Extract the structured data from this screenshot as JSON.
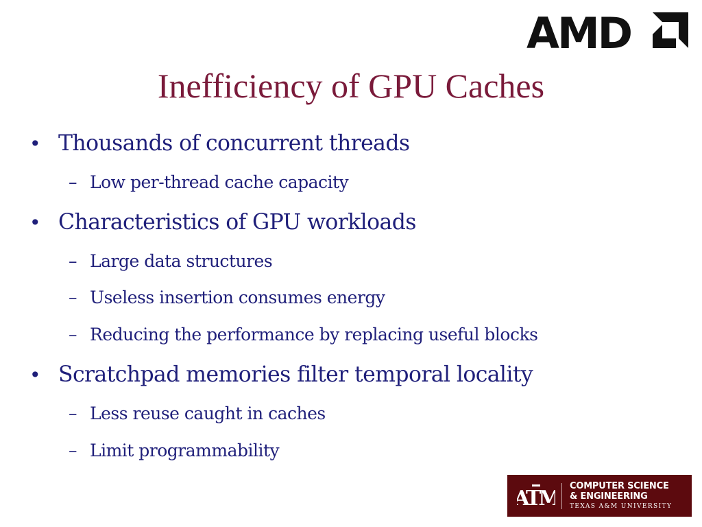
{
  "slide": {
    "title": "Inefficiency of GPU Caches",
    "bullets": [
      {
        "text": "Thousands of concurrent threads",
        "sub": [
          "Low per-thread cache capacity"
        ]
      },
      {
        "text": "Characteristics of GPU workloads",
        "sub": [
          "Large data structures",
          "Useless insertion consumes energy",
          "Reducing the performance by replacing useful blocks"
        ]
      },
      {
        "text": "Scratchpad memories filter temporal locality",
        "sub": [
          "Less reuse caught in caches",
          "Limit programmability"
        ]
      }
    ],
    "bullet_glyph": "•",
    "sub_glyph": "–"
  },
  "logos": {
    "amd": {
      "text": "AMD"
    },
    "tamu": {
      "monogram": "ATM",
      "line1": "COMPUTER SCIENCE",
      "line2": "& ENGINEERING",
      "line3": "TEXAS A&M UNIVERSITY"
    }
  },
  "colors": {
    "title": "#7a1a3a",
    "text": "#1f1f7a",
    "tamu_maroon": "#5c0a0e"
  }
}
